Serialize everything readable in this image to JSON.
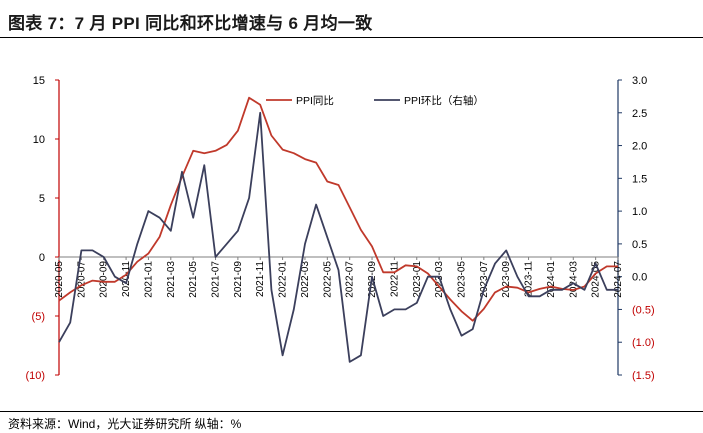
{
  "header": {
    "title": "图表 7：7 月 PPI 同比和环比增速与 6 月均一致"
  },
  "footer": {
    "source": "资料来源：Wind，光大证券研究所   纵轴：%"
  },
  "colors": {
    "yoy": "#c0392b",
    "mom": "#3b3f5c",
    "axis_left": "#c00000",
    "axis_right": "#1f3864",
    "neg_label": "#c00000"
  },
  "chart_data": {
    "type": "line",
    "y_left_ticks": [
      "15",
      "10",
      "5",
      "0",
      "(5)",
      "(10)"
    ],
    "y_right_ticks": [
      "3.0",
      "2.5",
      "2.0",
      "1.5",
      "1.0",
      "0.5",
      "0.0",
      "(0.5)",
      "(1.0)",
      "(1.5)"
    ],
    "x_tick_labels": [
      "2020-05",
      "2020-07",
      "2020-09",
      "2020-11",
      "2021-01",
      "2021-03",
      "2021-05",
      "2021-07",
      "2021-09",
      "2021-11",
      "2022-01",
      "2022-03",
      "2022-05",
      "2022-07",
      "2022-09",
      "2022-11",
      "2023-01",
      "2023-03",
      "2023-05",
      "2023-07",
      "2023-09",
      "2023-11",
      "2024-01",
      "2024-03",
      "2024-05",
      "2024-07"
    ],
    "x": [
      "2020-05",
      "2020-06",
      "2020-07",
      "2020-08",
      "2020-09",
      "2020-10",
      "2020-11",
      "2020-12",
      "2021-01",
      "2021-02",
      "2021-03",
      "2021-04",
      "2021-05",
      "2021-06",
      "2021-07",
      "2021-08",
      "2021-09",
      "2021-10",
      "2021-11",
      "2021-12",
      "2022-01",
      "2022-02",
      "2022-03",
      "2022-04",
      "2022-05",
      "2022-06",
      "2022-07",
      "2022-08",
      "2022-09",
      "2022-10",
      "2022-11",
      "2022-12",
      "2023-01",
      "2023-02",
      "2023-03",
      "2023-04",
      "2023-05",
      "2023-06",
      "2023-07",
      "2023-08",
      "2023-09",
      "2023-10",
      "2023-11",
      "2023-12",
      "2024-01",
      "2024-02",
      "2024-03",
      "2024-04",
      "2024-05",
      "2024-06",
      "2024-07"
    ],
    "ylim_left": [
      -10,
      15
    ],
    "ylim_right": [
      -1.5,
      3.0
    ],
    "series": [
      {
        "name": "PPI同比",
        "axis": "left",
        "color": "#c0392b",
        "values": [
          -3.7,
          -3.0,
          -2.4,
          -2.0,
          -2.1,
          -2.1,
          -1.5,
          -0.4,
          0.3,
          1.7,
          4.4,
          6.8,
          9.0,
          8.8,
          9.0,
          9.5,
          10.7,
          13.5,
          12.9,
          10.3,
          9.1,
          8.8,
          8.3,
          8.0,
          6.4,
          6.1,
          4.2,
          2.3,
          0.9,
          -1.3,
          -1.3,
          -0.7,
          -0.8,
          -1.4,
          -2.5,
          -3.6,
          -4.6,
          -5.4,
          -4.4,
          -3.0,
          -2.5,
          -2.6,
          -3.0,
          -2.7,
          -2.5,
          -2.7,
          -2.8,
          -2.5,
          -1.4,
          -0.8,
          -0.8
        ]
      },
      {
        "name": "PPI环比（右轴）",
        "axis": "right",
        "color": "#3b3f5c",
        "values": [
          -1.0,
          -0.7,
          0.4,
          0.4,
          0.3,
          0.0,
          -0.1,
          0.5,
          1.0,
          0.9,
          0.7,
          1.6,
          0.9,
          1.7,
          0.3,
          0.5,
          0.7,
          1.2,
          2.5,
          -0.2,
          -1.2,
          -0.5,
          0.5,
          1.1,
          0.6,
          0.1,
          -1.3,
          -1.2,
          0.0,
          -0.6,
          -0.5,
          -0.5,
          -0.4,
          0.0,
          0.0,
          -0.5,
          -0.9,
          -0.8,
          -0.2,
          0.2,
          0.4,
          0.0,
          -0.3,
          -0.3,
          -0.2,
          -0.2,
          -0.1,
          -0.2,
          0.2,
          -0.2,
          -0.2
        ]
      }
    ],
    "legend": {
      "placement": "top-center",
      "items": [
        "PPI同比",
        "PPI环比（右轴）"
      ]
    }
  }
}
